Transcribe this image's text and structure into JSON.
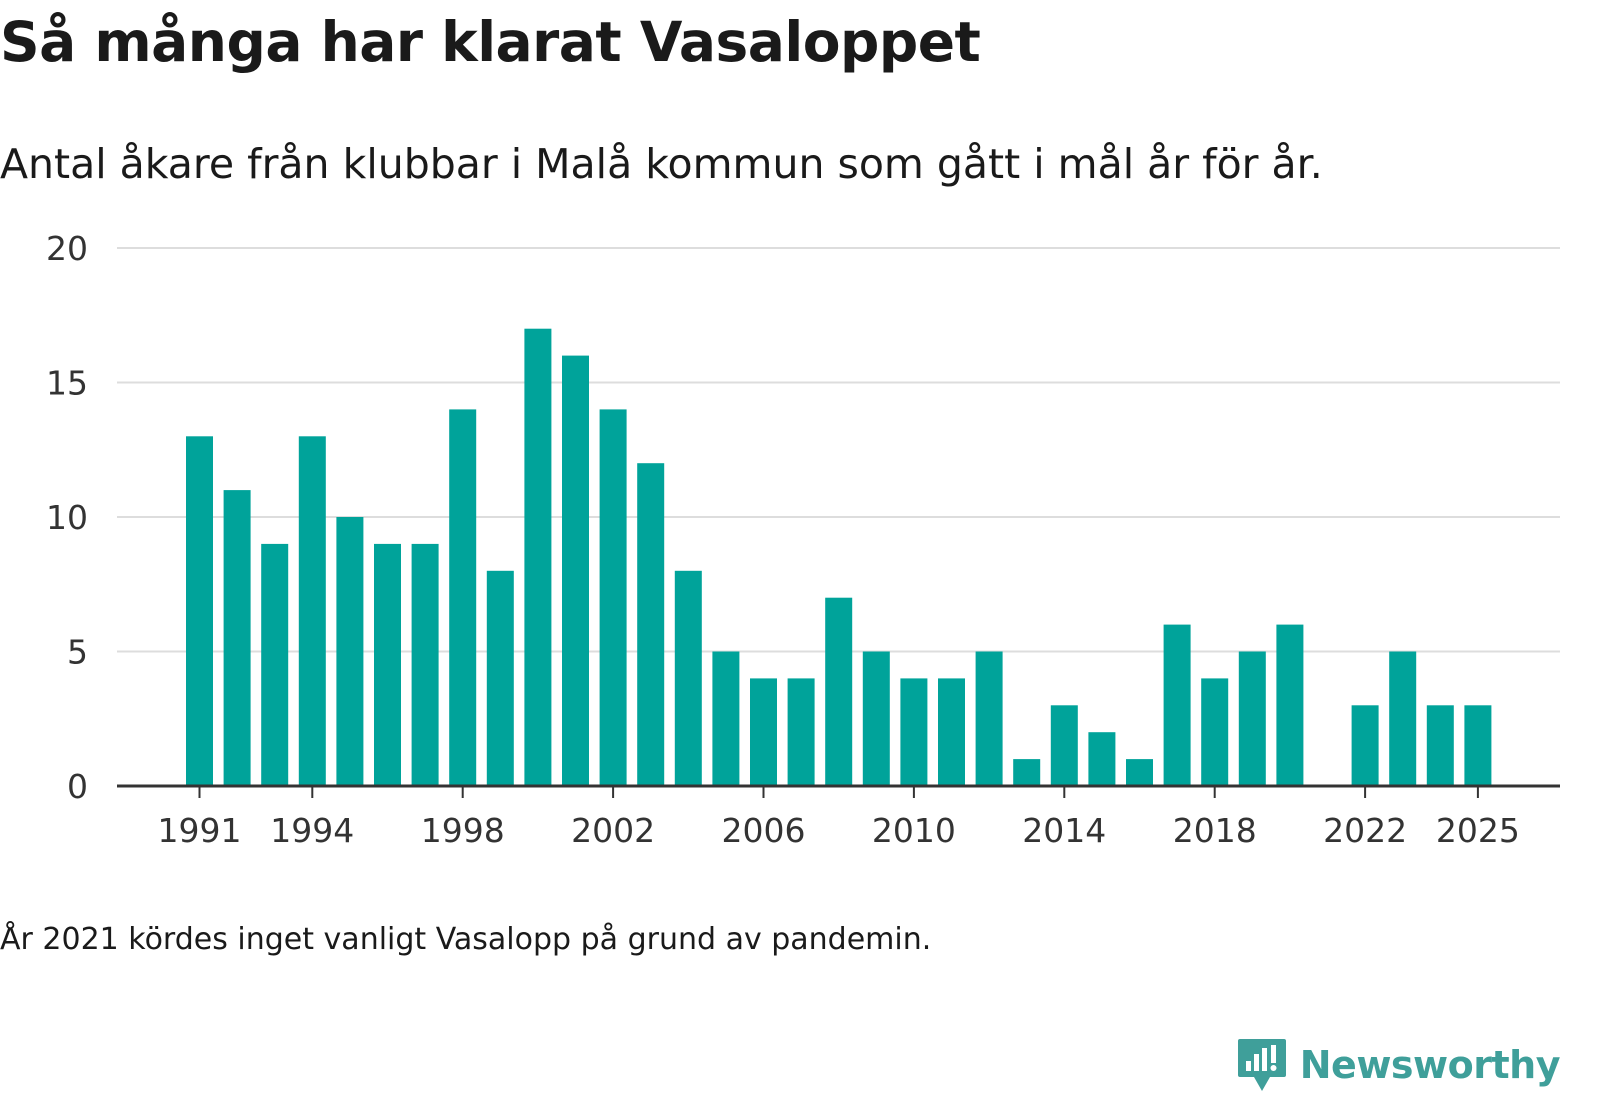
{
  "title": "Så många har klarat Vasaloppet",
  "subtitle": "Antal åkare från klubbar i Malå kommun som gått i mål år för år.",
  "footnote": "År 2021 kördes inget vanligt Vasalopp på grund av pandemin.",
  "brand": {
    "name": "Newsworthy",
    "icon": "newsworthy-logo-icon"
  },
  "colors": {
    "bar": "#00a39a",
    "grid": "#dddddd",
    "axis": "#333333",
    "brand": "#3f9f9a"
  },
  "chart_data": {
    "type": "bar",
    "title": "Så många har klarat Vasaloppet",
    "xlabel": "",
    "ylabel": "",
    "ylim": [
      0,
      20
    ],
    "yticks": [
      0,
      5,
      10,
      15,
      20
    ],
    "xtick_labels": [
      "1991",
      "1994",
      "1998",
      "2002",
      "2006",
      "2010",
      "2014",
      "2018",
      "2022",
      "2025"
    ],
    "grid": true,
    "categories": [
      "1991",
      "1992",
      "1993",
      "1994",
      "1995",
      "1996",
      "1997",
      "1998",
      "1999",
      "2000",
      "2001",
      "2002",
      "2003",
      "2004",
      "2005",
      "2006",
      "2007",
      "2008",
      "2009",
      "2010",
      "2011",
      "2012",
      "2013",
      "2014",
      "2015",
      "2016",
      "2017",
      "2018",
      "2019",
      "2020",
      "2021",
      "2022",
      "2023",
      "2024",
      "2025"
    ],
    "values": [
      13,
      11,
      9,
      13,
      10,
      9,
      9,
      14,
      8,
      17,
      16,
      14,
      12,
      8,
      5,
      4,
      4,
      7,
      5,
      4,
      4,
      5,
      1,
      3,
      2,
      1,
      6,
      4,
      5,
      6,
      0,
      3,
      5,
      3,
      3
    ]
  }
}
